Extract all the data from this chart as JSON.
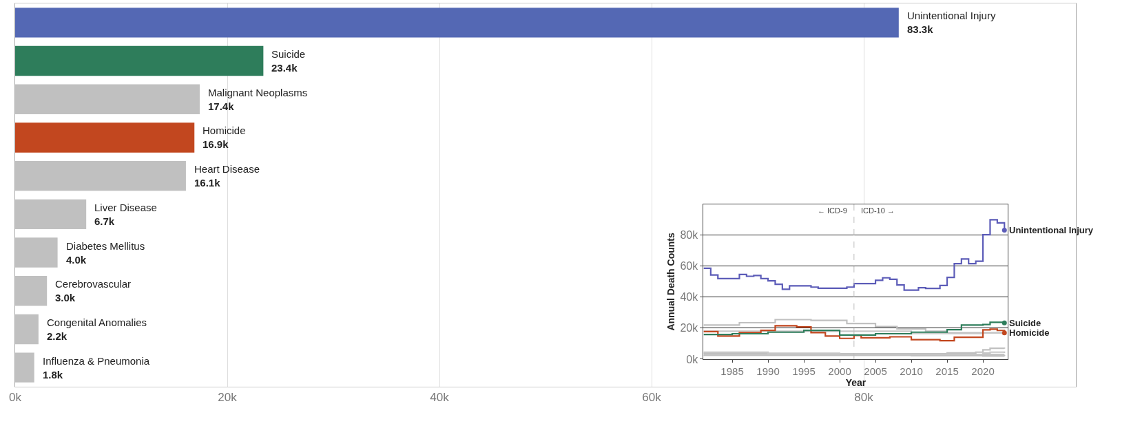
{
  "chart_data": [
    {
      "type": "bar",
      "orientation": "horizontal",
      "categories": [
        "Unintentional Injury",
        "Suicide",
        "Malignant Neoplasms",
        "Homicide",
        "Heart Disease",
        "Liver Disease",
        "Diabetes Mellitus",
        "Cerebrovascular",
        "Congenital Anomalies",
        "Influenza & Pneumonia"
      ],
      "values": [
        83300,
        23400,
        17400,
        16900,
        16100,
        6700,
        4000,
        3000,
        2200,
        1800
      ],
      "colors": [
        "#5468b4",
        "#2e7d5b",
        "#c0c0c0",
        "#c2471f",
        "#c0c0c0",
        "#c0c0c0",
        "#c0c0c0",
        "#c0c0c0",
        "#c0c0c0",
        "#c0c0c0"
      ],
      "value_labels": [
        "83.3k",
        "23.4k",
        "17.4k",
        "16.9k",
        "16.1k",
        "6.7k",
        "4.0k",
        "3.0k",
        "2.2k",
        "1.8k"
      ],
      "xlim": [
        0,
        100000
      ],
      "xticks": [
        {
          "value": 0,
          "label": "0k"
        },
        {
          "value": 20000,
          "label": "20k"
        },
        {
          "value": 40000,
          "label": "40k"
        },
        {
          "value": 60000,
          "label": "60k"
        },
        {
          "value": 80000,
          "label": "80k"
        }
      ],
      "grid": "x",
      "tick_labels": "x"
    },
    {
      "type": "step",
      "xlabel": "Year",
      "ylabel": "Annual Death Counts",
      "series": [
        {
          "color": "#c0c0c0",
          "x": [
            1981,
            1986,
            1991,
            1996,
            2001,
            2005,
            2008,
            2012,
            2015,
            2020,
            2023
          ],
          "values": [
            22000,
            23500,
            25500,
            25000,
            23000,
            21000,
            19500,
            18000,
            17000,
            17000,
            16100
          ]
        },
        {
          "color": "#c8c8c8",
          "x": [
            1981,
            1990,
            2000,
            2010,
            2015,
            2020,
            2023
          ],
          "values": [
            18000,
            18000,
            18000,
            16500,
            16500,
            17000,
            17400
          ]
        },
        {
          "color": "#c0c0c0",
          "x": [
            1981,
            1995,
            2010,
            2015,
            2019,
            2020,
            2021,
            2023
          ],
          "values": [
            3500,
            3500,
            3500,
            4000,
            4500,
            6000,
            7000,
            6700
          ]
        },
        {
          "color": "#c8c8c8",
          "x": [
            1981,
            1995,
            2010,
            2019,
            2020,
            2021,
            2023
          ],
          "values": [
            2500,
            2500,
            2500,
            2800,
            4000,
            4500,
            4000
          ]
        },
        {
          "color": "#c0c0c0",
          "x": [
            1981,
            1990,
            2000,
            2010,
            2020,
            2023
          ],
          "values": [
            4000,
            3500,
            3000,
            3000,
            3000,
            3000
          ]
        },
        {
          "color": "#c8c8c8",
          "x": [
            1981,
            1990,
            2000,
            2010,
            2020,
            2023
          ],
          "values": [
            4500,
            3800,
            3000,
            2600,
            2400,
            2200
          ]
        },
        {
          "color": "#c0c0c0",
          "x": [
            1981,
            1990,
            2000,
            2010,
            2020,
            2023
          ],
          "values": [
            2500,
            2500,
            2500,
            2200,
            2000,
            1800
          ]
        },
        {
          "name": "Homicide",
          "color": "#c2471f",
          "x": [
            1981,
            1983,
            1986,
            1989,
            1991,
            1994,
            1996,
            1998,
            2000,
            2002,
            2003,
            2007,
            2010,
            2014,
            2016,
            2020,
            2021,
            2022,
            2023
          ],
          "values": [
            17800,
            14900,
            17100,
            18600,
            21600,
            20800,
            17100,
            14900,
            13400,
            15300,
            13800,
            14400,
            12600,
            11900,
            14100,
            18900,
            19300,
            18500,
            16900
          ]
        },
        {
          "name": "Suicide",
          "color": "#2e7d5b",
          "x": [
            1981,
            1985,
            1990,
            1995,
            2000,
            2005,
            2010,
            2015,
            2017,
            2020,
            2021,
            2023
          ],
          "values": [
            15900,
            16400,
            17400,
            18600,
            15600,
            16400,
            17400,
            19000,
            22000,
            22300,
            23800,
            23400
          ]
        },
        {
          "name": "Unintentional Injury",
          "color": "#5c5cb8",
          "x": [
            1981,
            1982,
            1983,
            1986,
            1987,
            1988,
            1989,
            1990,
            1991,
            1992,
            1993,
            1996,
            1997,
            2001,
            2002,
            2005,
            2006,
            2007,
            2008,
            2009,
            2011,
            2012,
            2014,
            2015,
            2016,
            2017,
            2018,
            2019,
            2020,
            2021,
            2022,
            2023
          ],
          "values": [
            58700,
            54300,
            52000,
            54700,
            53500,
            54000,
            52000,
            50600,
            48300,
            45100,
            47300,
            46500,
            45800,
            46500,
            48800,
            50900,
            52500,
            51600,
            47900,
            44600,
            46100,
            45700,
            47600,
            52800,
            61700,
            64700,
            61700,
            63200,
            80300,
            90000,
            88000,
            83300
          ]
        }
      ],
      "xlim": [
        1981,
        2023.5
      ],
      "ylim": [
        0,
        100000
      ],
      "xticks": [
        1985,
        1990,
        1995,
        2000,
        2005,
        2010,
        2015,
        2020
      ],
      "yticks": [
        {
          "value": 0,
          "label": "0k"
        },
        {
          "value": 20000,
          "label": "20k"
        },
        {
          "value": 40000,
          "label": "40k"
        },
        {
          "value": 60000,
          "label": "60k"
        },
        {
          "value": 80000,
          "label": "80k"
        }
      ],
      "grid": "y",
      "ref_lines": [
        {
          "axis": "x",
          "value": 2002,
          "color": "#bbbbbb",
          "line_style": "dashed"
        }
      ],
      "annotations": [
        {
          "text": "← ICD-9",
          "x": 2002,
          "y": 96000
        },
        {
          "text": "ICD-10 →",
          "x": 2002,
          "y": 96000
        }
      ]
    }
  ]
}
